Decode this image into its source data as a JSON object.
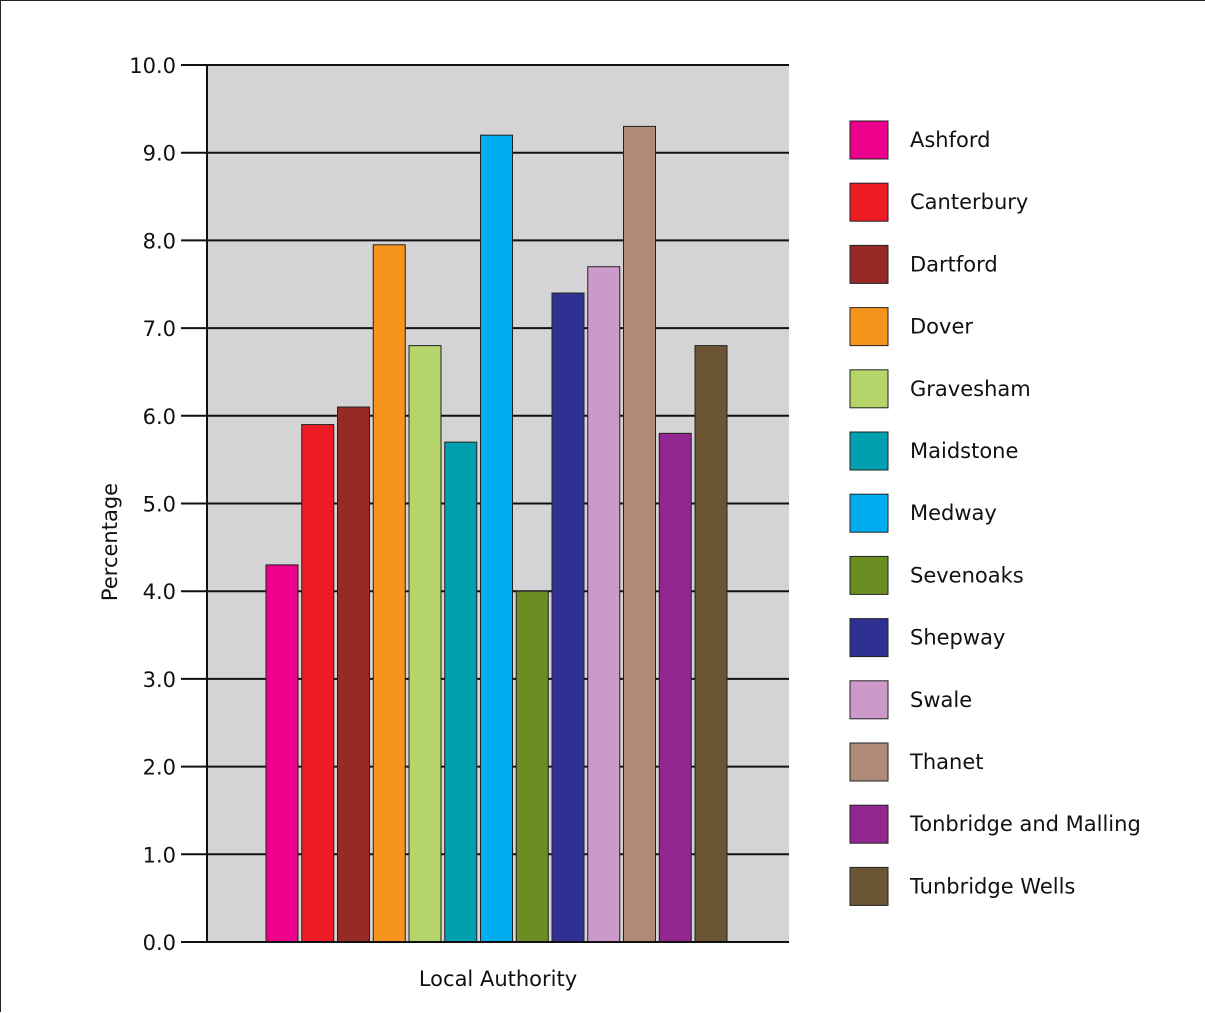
{
  "chart_data": {
    "type": "bar",
    "title": "",
    "xlabel": "Local Authority",
    "ylabel": "Percentage",
    "ylim": [
      0,
      10
    ],
    "yticks": [
      "0.0",
      "1.0",
      "2.0",
      "3.0",
      "4.0",
      "5.0",
      "6.0",
      "7.0",
      "8.0",
      "9.0",
      "10.0"
    ],
    "grid": "horizontal",
    "legend": "right",
    "categories": [
      "Ashford",
      "Canterbury",
      "Dartford",
      "Dover",
      "Gravesham",
      "Maidstone",
      "Medway",
      "Sevenoaks",
      "Shepway",
      "Swale",
      "Thanet",
      "Tonbridge and Malling",
      "Tunbridge Wells"
    ],
    "values": [
      4.3,
      5.9,
      6.1,
      7.95,
      6.8,
      5.7,
      9.2,
      4.0,
      7.4,
      7.7,
      9.3,
      5.8,
      6.8
    ],
    "colors": [
      "#ec008c",
      "#ed1c24",
      "#972a27",
      "#f7941d",
      "#b5d56a",
      "#00a0b0",
      "#00aeef",
      "#6b8e23",
      "#2e3192",
      "#cc99c9",
      "#b08a78",
      "#92278f",
      "#6b5535"
    ],
    "plot_background": "#d4d4d6"
  }
}
